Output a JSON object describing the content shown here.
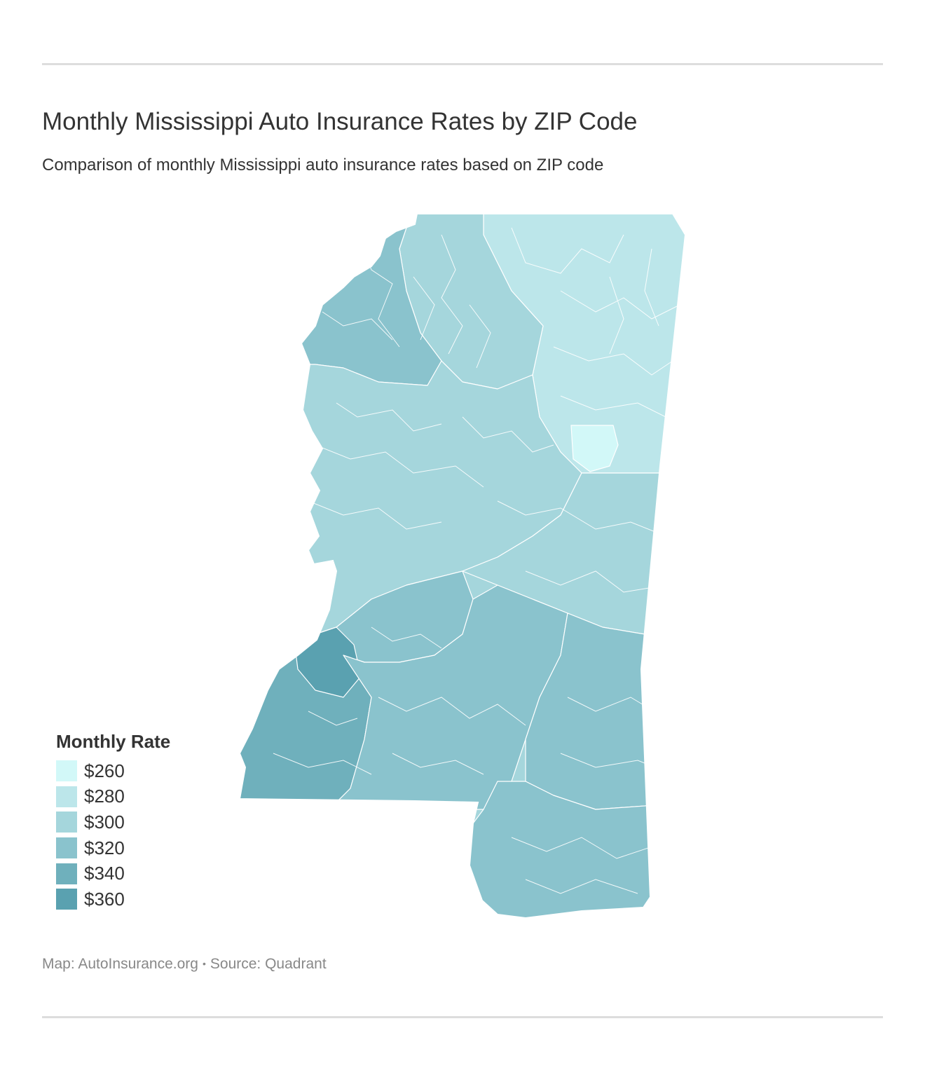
{
  "title": "Monthly Mississippi Auto Insurance Rates by ZIP Code",
  "subtitle": "Comparison of monthly Mississippi auto insurance rates based on ZIP code",
  "legend": {
    "title": "Monthly Rate",
    "items": [
      {
        "label": "$260",
        "color": "#d2f8f8"
      },
      {
        "label": "$280",
        "color": "#bce6ea"
      },
      {
        "label": "$300",
        "color": "#a5d6dc"
      },
      {
        "label": "$320",
        "color": "#8ac3cd"
      },
      {
        "label": "$340",
        "color": "#6fb0bc"
      },
      {
        "label": "$360",
        "color": "#5aa1b0"
      }
    ]
  },
  "credit": {
    "map": "Map: AutoInsurance.org",
    "separator": "•",
    "source": "Source: Quadrant"
  },
  "map": {
    "state": "Mississippi",
    "regions": [
      {
        "name": "northeast",
        "rate": "$280"
      },
      {
        "name": "east-central-cluster",
        "rate": "$260"
      },
      {
        "name": "north-central",
        "rate": "$300"
      },
      {
        "name": "delta-northwest",
        "rate": "$320"
      },
      {
        "name": "central",
        "rate": "$300"
      },
      {
        "name": "east-central",
        "rate": "$300"
      },
      {
        "name": "jackson-metro",
        "rate": "$320"
      },
      {
        "name": "southwest",
        "rate": "$340"
      },
      {
        "name": "southwest-core",
        "rate": "$360"
      },
      {
        "name": "south-central",
        "rate": "$320"
      },
      {
        "name": "southeast",
        "rate": "$320"
      },
      {
        "name": "gulf-coast",
        "rate": "$320"
      }
    ]
  }
}
